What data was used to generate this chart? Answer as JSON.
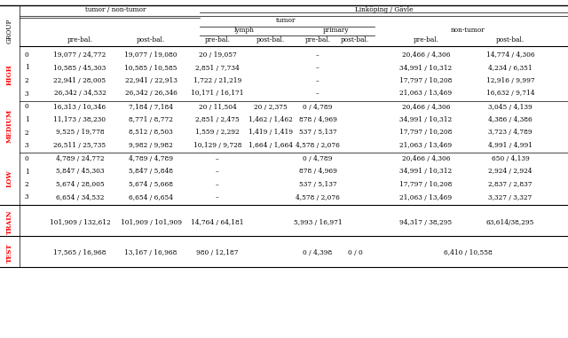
{
  "high_rows": [
    [
      "0",
      "19,077 / 24,772",
      "19,077 / 19,080",
      "20 / 19,057",
      "",
      "–",
      "",
      "20,466 / 4,306",
      "14,774 / 4,306"
    ],
    [
      "1",
      "10,585 / 45,303",
      "10,585 / 10,585",
      "2,851 / 7,734",
      "",
      "–",
      "",
      "34,991 / 10,312",
      "4,234 / 6,351"
    ],
    [
      "2",
      "22,941 / 28,005",
      "22,941 / 22,913",
      "1,722 / 21,219",
      "",
      "–",
      "",
      "17,797 / 10,208",
      "12,916 / 9,997"
    ],
    [
      "3",
      "26,342 / 34,532",
      "26,342 / 26,346",
      "10,171 / 16,171",
      "",
      "–",
      "",
      "21,063 / 13,469",
      "16,632 / 9,714"
    ]
  ],
  "medium_rows": [
    [
      "0",
      "16,313 / 10,346",
      "7,184 / 7,184",
      "20 / 11,504",
      "20 / 2,375",
      "0 / 4,789",
      "",
      "20,466 / 4,306",
      "3,045 / 4,139"
    ],
    [
      "1",
      "11,173 / 38,230",
      "8,771 / 8,772",
      "2,851 / 2,475",
      "1,462 / 1,462",
      "878 / 4,969",
      "",
      "34,991 / 10,312",
      "4,386 / 4,386"
    ],
    [
      "2",
      "9,525 / 19,778",
      "8,512 / 8,503",
      "1,559 / 2,292",
      "1,419 / 1,419",
      "537 / 5,137",
      "",
      "17,797 / 10,208",
      "3,723 / 4,789"
    ],
    [
      "3",
      "26,511 / 25,735",
      "9,982 / 9,982",
      "10,129 / 9,728",
      "1,664 / 1,664",
      "4,578 / 2,076",
      "",
      "21,063 / 13,469",
      "4,991 / 4,991"
    ]
  ],
  "low_rows": [
    [
      "0",
      "4,789 / 24,772",
      "4,789 / 4,789",
      "–",
      "",
      "0 / 4,789",
      "",
      "20,466 / 4,306",
      "650 / 4,139"
    ],
    [
      "1",
      "5,847 / 45,303",
      "5,847 / 5,848",
      "–",
      "",
      "878 / 4,969",
      "",
      "34,991 / 10,312",
      "2,924 / 2,924"
    ],
    [
      "2",
      "5,674 / 28,005",
      "5,674 / 5,668",
      "–",
      "",
      "537 / 5,137",
      "",
      "17,797 / 10,208",
      "2,837 / 2,837"
    ],
    [
      "3",
      "6,654 / 34,532",
      "6,654 / 6,654",
      "–",
      "",
      "4,578 / 2,076",
      "",
      "21,063 / 13,469",
      "3,327 / 3,327"
    ]
  ],
  "train_row": [
    "101,909 / 132,612",
    "101,909 / 101,909",
    "14,764 / 64,181",
    "",
    "5,993 / 16,971",
    "",
    "94,317 / 38,295",
    "63,614/38,295"
  ],
  "test_row": [
    "17,565 / 16,968",
    "13,167 / 16,968",
    "980 / 12,187",
    "",
    "0 / 4,398",
    "0 / 0",
    "6,410 / 10,558",
    ""
  ]
}
